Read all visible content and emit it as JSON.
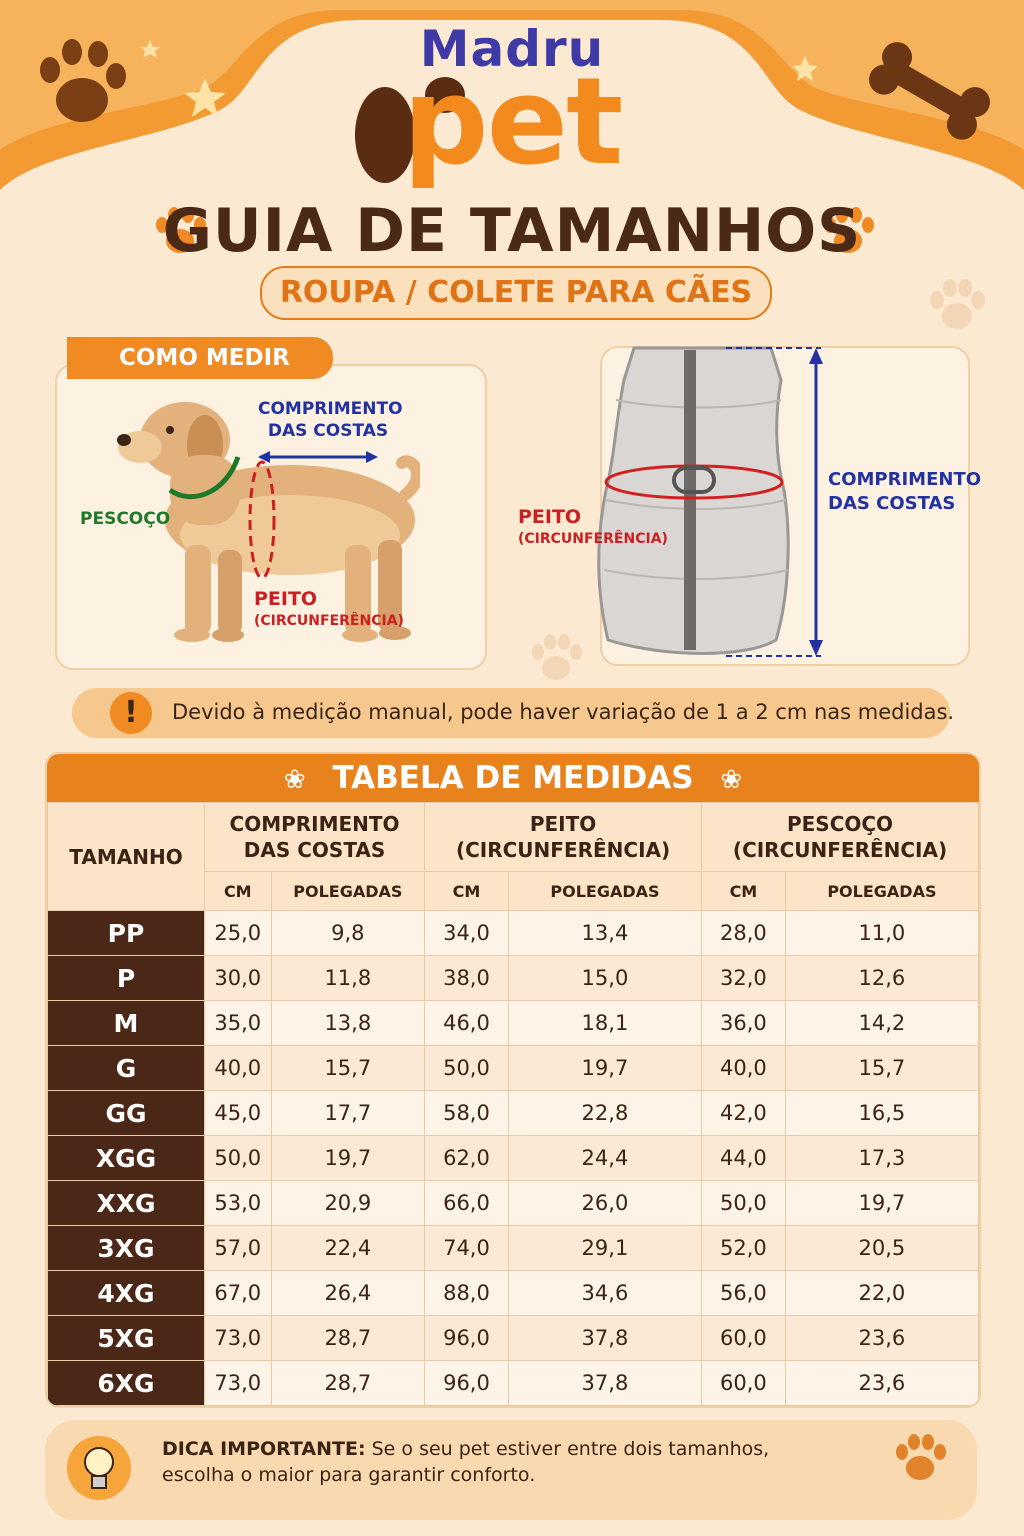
{
  "brand": {
    "line1": "Madru",
    "line2": "pet"
  },
  "title": "GUIA DE TAMANHOS",
  "subtitle": "ROUPA / COLETE PARA CÃES",
  "how_to_measure": {
    "label": "COMO MEDIR",
    "dog_labels": {
      "back_length_1": "COMPRIMENTO",
      "back_length_2": "DAS COSTAS",
      "neck": "PESCOÇO",
      "chest": "PEITO",
      "chest_sub": "(CIRCUNFERÊNCIA)"
    },
    "vest_labels": {
      "chest": "PEITO",
      "chest_sub": "(CIRCUNFERÊNCIA)",
      "back_length_1": "COMPRIMENTO",
      "back_length_2": "DAS COSTAS"
    }
  },
  "notice": "Devido à medição manual, pode haver variação de 1 a 2 cm nas medidas.",
  "notice_icon": "!",
  "table": {
    "title": "TABELA DE MEDIDAS",
    "size_header": "TAMANHO",
    "groups": [
      {
        "line1": "COMPRIMENTO",
        "line2": "DAS COSTAS"
      },
      {
        "line1": "PEITO",
        "line2": "(CIRCUNFERÊNCIA)"
      },
      {
        "line1": "PESCOÇO",
        "line2": "(CIRCUNFERÊNCIA)"
      }
    ],
    "unit_cm": "CM",
    "unit_in": "POLEGADAS",
    "rows": [
      {
        "size": "PP",
        "values": [
          "25,0",
          "9,8",
          "34,0",
          "13,4",
          "28,0",
          "11,0"
        ]
      },
      {
        "size": "P",
        "values": [
          "30,0",
          "11,8",
          "38,0",
          "15,0",
          "32,0",
          "12,6"
        ]
      },
      {
        "size": "M",
        "values": [
          "35,0",
          "13,8",
          "46,0",
          "18,1",
          "36,0",
          "14,2"
        ]
      },
      {
        "size": "G",
        "values": [
          "40,0",
          "15,7",
          "50,0",
          "19,7",
          "40,0",
          "15,7"
        ]
      },
      {
        "size": "GG",
        "values": [
          "45,0",
          "17,7",
          "58,0",
          "22,8",
          "42,0",
          "16,5"
        ]
      },
      {
        "size": "XGG",
        "values": [
          "50,0",
          "19,7",
          "62,0",
          "24,4",
          "44,0",
          "17,3"
        ]
      },
      {
        "size": "XXG",
        "values": [
          "53,0",
          "20,9",
          "66,0",
          "26,0",
          "50,0",
          "19,7"
        ]
      },
      {
        "size": "3XG",
        "values": [
          "57,0",
          "22,4",
          "74,0",
          "29,1",
          "52,0",
          "20,5"
        ]
      },
      {
        "size": "4XG",
        "values": [
          "67,0",
          "26,4",
          "88,0",
          "34,6",
          "56,0",
          "22,0"
        ]
      },
      {
        "size": "5XG",
        "values": [
          "73,0",
          "28,7",
          "96,0",
          "37,8",
          "60,0",
          "23,6"
        ]
      },
      {
        "size": "6XG",
        "values": [
          "73,0",
          "28,7",
          "96,0",
          "37,8",
          "60,0",
          "23,6"
        ]
      }
    ]
  },
  "tip": {
    "label": "DICA IMPORTANTE:",
    "text": "Se o seu pet estiver entre dois tamanhos, escolha o maior para garantir conforto."
  },
  "colors": {
    "orange": "#f08a22",
    "brown": "#4a2716",
    "cream": "#fbe9d2",
    "blue": "#3f3aa6"
  }
}
